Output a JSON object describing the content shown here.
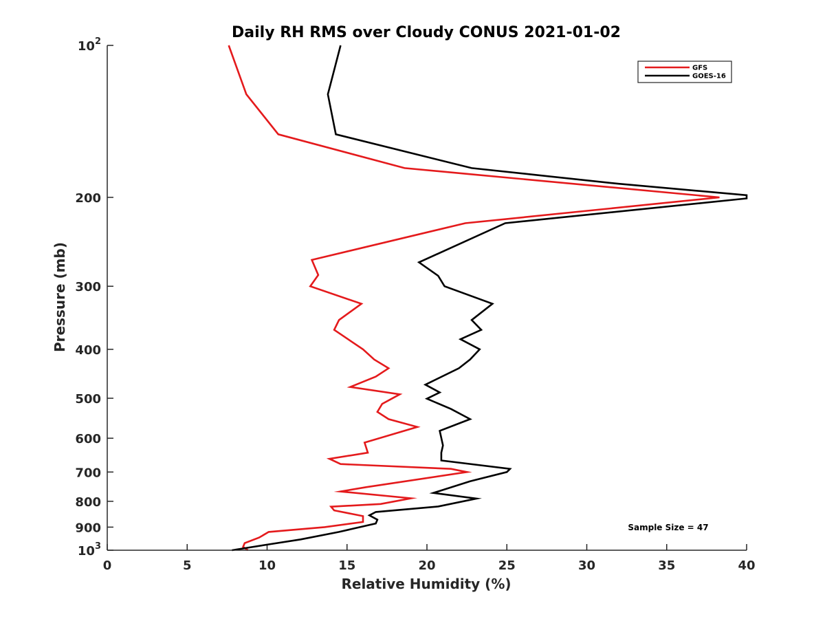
{
  "chart_data": {
    "type": "line",
    "title": "Daily RH RMS over Cloudy CONUS 2021-01-02",
    "xlabel": "Relative Humidity (%)",
    "ylabel": "Pressure (mb)",
    "xlim": [
      0,
      40
    ],
    "ylim": [
      100,
      1000
    ],
    "y_scale": "log",
    "y_reversed": true,
    "x_ticks": [
      "0",
      "5",
      "10",
      "15",
      "20",
      "25",
      "30",
      "35",
      "40"
    ],
    "x_tick_values": [
      0,
      5,
      10,
      15,
      20,
      25,
      30,
      35,
      40
    ],
    "y_tick_values": [
      100,
      200,
      300,
      400,
      500,
      600,
      700,
      800,
      900,
      1000
    ],
    "y_tick_labels": [
      {
        "base": "10",
        "exp": "2"
      },
      {
        "base": "200",
        "exp": ""
      },
      {
        "base": "300",
        "exp": ""
      },
      {
        "base": "400",
        "exp": ""
      },
      {
        "base": "500",
        "exp": ""
      },
      {
        "base": "600",
        "exp": ""
      },
      {
        "base": "700",
        "exp": ""
      },
      {
        "base": "800",
        "exp": ""
      },
      {
        "base": "900",
        "exp": ""
      },
      {
        "base": "10",
        "exp": "3"
      }
    ],
    "legend_position": "top-right",
    "annotation": "Sample Size = 47",
    "series": [
      {
        "name": "GFS",
        "color": "#e41a1c",
        "points": [
          [
            7.6,
            100
          ],
          [
            8.7,
            125
          ],
          [
            10.7,
            150
          ],
          [
            18.6,
            175
          ],
          [
            38.3,
            200
          ],
          [
            22.4,
            225
          ],
          [
            12.8,
            266
          ],
          [
            13.2,
            285
          ],
          [
            12.7,
            300
          ],
          [
            15.9,
            325
          ],
          [
            14.5,
            350
          ],
          [
            14.2,
            366
          ],
          [
            16.0,
            400
          ],
          [
            16.7,
            419
          ],
          [
            17.6,
            436
          ],
          [
            16.8,
            453
          ],
          [
            15.2,
            475
          ],
          [
            18.3,
            491
          ],
          [
            17.2,
            513
          ],
          [
            16.9,
            532
          ],
          [
            17.6,
            550
          ],
          [
            19.4,
            570
          ],
          [
            16.1,
            612
          ],
          [
            16.3,
            641
          ],
          [
            13.9,
            659
          ],
          [
            14.6,
            675
          ],
          [
            21.5,
            690
          ],
          [
            22.5,
            700
          ],
          [
            16.2,
            750
          ],
          [
            14.6,
            765
          ],
          [
            19.0,
            789
          ],
          [
            17.1,
            810
          ],
          [
            14.0,
            820
          ],
          [
            14.2,
            834
          ],
          [
            16.0,
            856
          ],
          [
            16.0,
            879
          ],
          [
            13.6,
            900
          ],
          [
            10.1,
            920
          ],
          [
            9.5,
            944
          ],
          [
            8.6,
            968
          ],
          [
            8.5,
            985
          ],
          [
            8.8,
            1000
          ]
        ]
      },
      {
        "name": "GOES-16",
        "color": "#000000",
        "points": [
          [
            14.6,
            100
          ],
          [
            13.8,
            125
          ],
          [
            14.3,
            150
          ],
          [
            22.8,
            175
          ],
          [
            32.0,
            188
          ],
          [
            40.0,
            198
          ],
          [
            40.0,
            201
          ],
          [
            24.9,
            225
          ],
          [
            19.5,
            269
          ],
          [
            20.7,
            286
          ],
          [
            21.1,
            300
          ],
          [
            24.1,
            325
          ],
          [
            22.8,
            350
          ],
          [
            23.4,
            366
          ],
          [
            22.1,
            382
          ],
          [
            23.3,
            400
          ],
          [
            22.7,
            419
          ],
          [
            22.0,
            436
          ],
          [
            19.9,
            470
          ],
          [
            20.8,
            487
          ],
          [
            20.0,
            501
          ],
          [
            21.5,
            525
          ],
          [
            22.7,
            550
          ],
          [
            20.8,
            580
          ],
          [
            21.0,
            620
          ],
          [
            20.9,
            641
          ],
          [
            20.9,
            664
          ],
          [
            25.2,
            690
          ],
          [
            25.0,
            700
          ],
          [
            22.7,
            730
          ],
          [
            20.4,
            770
          ],
          [
            23.1,
            790
          ],
          [
            20.7,
            819
          ],
          [
            16.8,
            840
          ],
          [
            16.4,
            853
          ],
          [
            16.9,
            870
          ],
          [
            16.8,
            885
          ],
          [
            14.5,
            920
          ],
          [
            12.1,
            952
          ],
          [
            10.0,
            975
          ],
          [
            7.8,
            1000
          ]
        ]
      }
    ]
  }
}
